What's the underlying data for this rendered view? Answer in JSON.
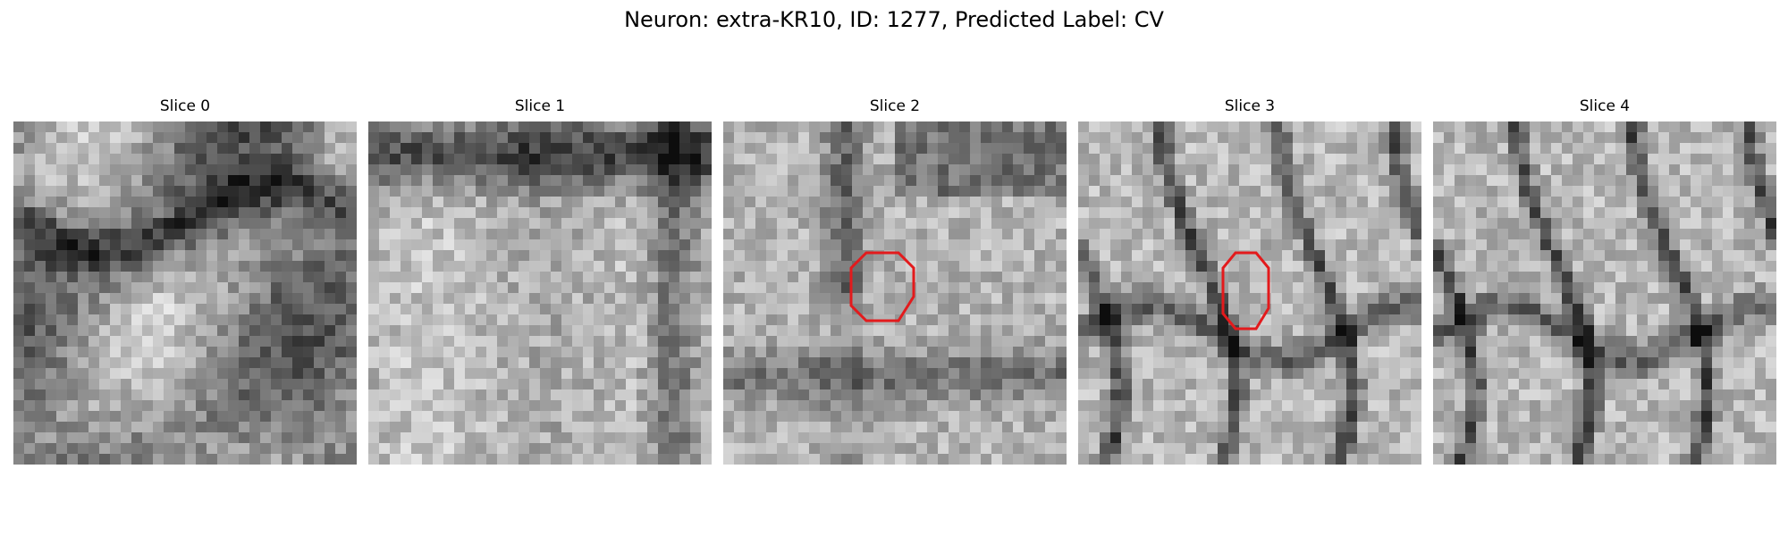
{
  "figure": {
    "title": "Neuron: extra-KR10, ID: 1277, Predicted Label: CV",
    "marker_color": "#e31a1c"
  },
  "slices": [
    {
      "title": "Slice 0",
      "has_marker": false,
      "seed": 11,
      "pattern": "mixed"
    },
    {
      "title": "Slice 1",
      "has_marker": false,
      "seed": 23,
      "pattern": "bright-arc"
    },
    {
      "title": "Slice 2",
      "has_marker": true,
      "seed": 37,
      "pattern": "bright-center"
    },
    {
      "title": "Slice 3",
      "has_marker": true,
      "seed": 51,
      "pattern": "membranes"
    },
    {
      "title": "Slice 4",
      "has_marker": false,
      "seed": 67,
      "pattern": "membranes"
    }
  ]
}
